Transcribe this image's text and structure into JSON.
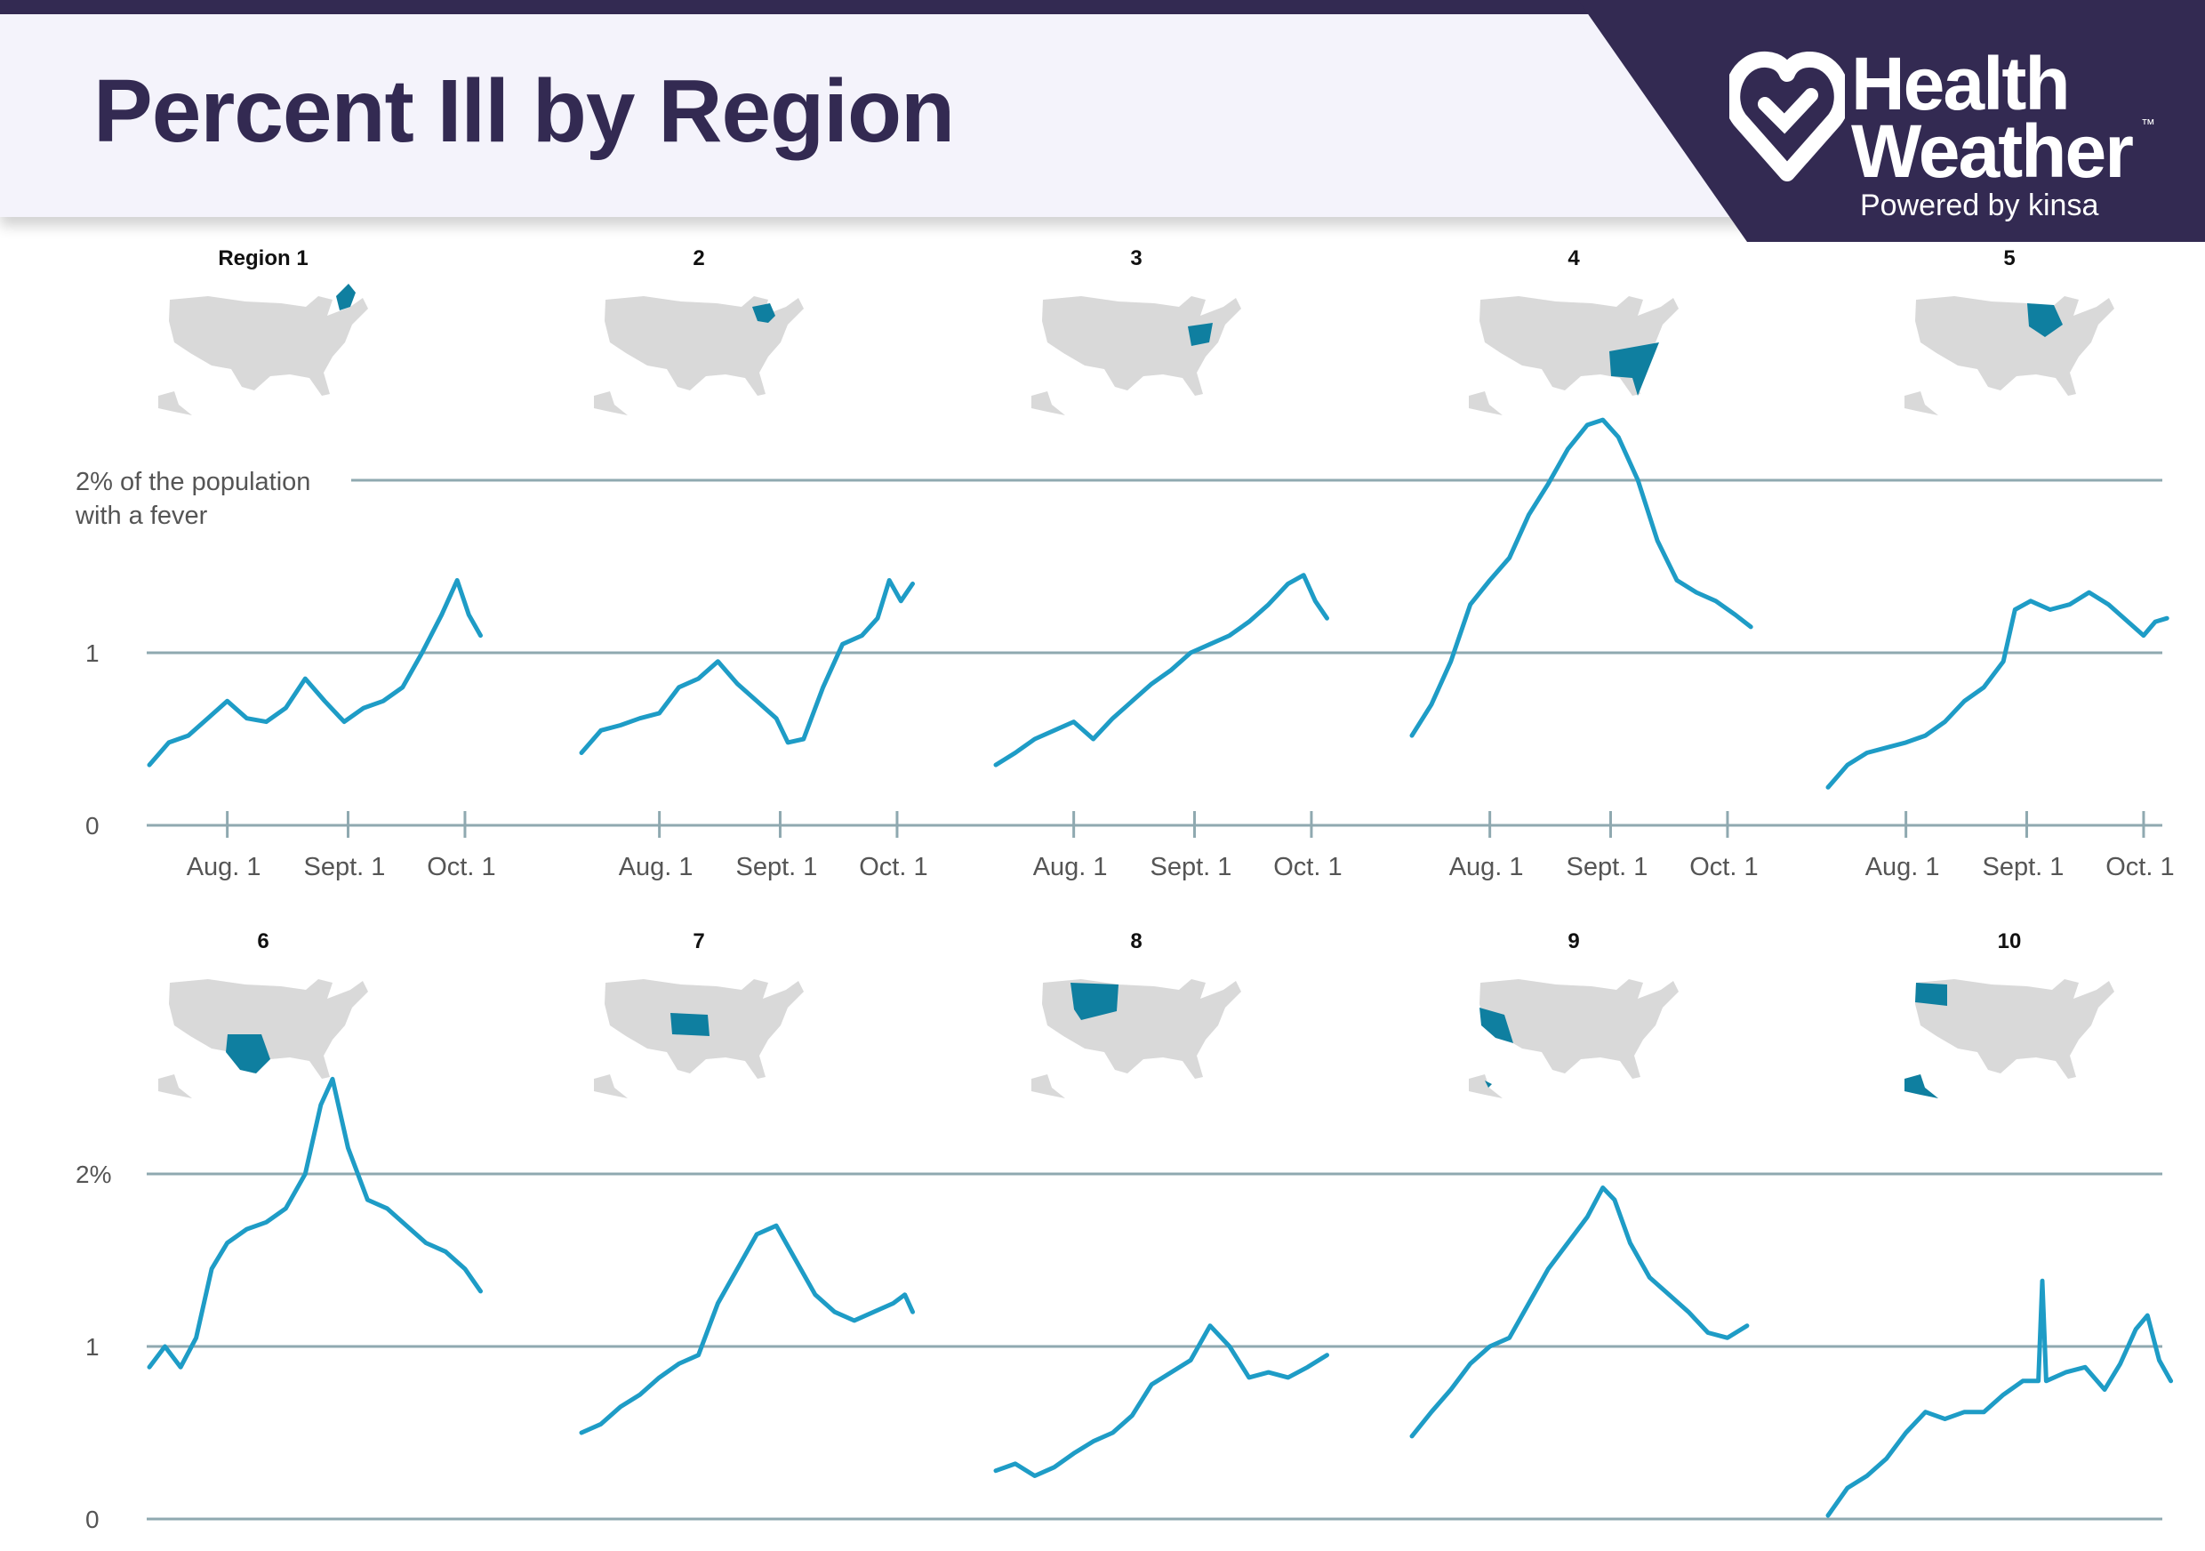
{
  "title": "Percent Ill by Region",
  "brand": {
    "line1": "Health",
    "line2": "Weather",
    "tm": "™",
    "powered": "Powered by kinsa",
    "bg": "#332a52"
  },
  "colors": {
    "line": "#1e9cc6",
    "highlight": "#0f7fa0",
    "map": "#d9d9d9",
    "grid": "#8fa9b0",
    "text": "#555555"
  },
  "chart_data": {
    "type": "line",
    "note_label": [
      "2% of the population",
      "with a fever"
    ],
    "ylim": [
      0,
      2.4
    ],
    "xlim": [
      "2019-07-12",
      "2019-10-09"
    ],
    "xticks": [
      {
        "date": "2019-08-01",
        "label": "Aug. 1"
      },
      {
        "date": "2019-09-01",
        "label": "Sept. 1"
      },
      {
        "date": "2019-10-01",
        "label": "Oct. 1"
      }
    ],
    "row_yticks": [
      {
        "value": 0,
        "label": "0"
      },
      {
        "value": 1,
        "label": "1"
      },
      {
        "value": 2,
        "label": "2%"
      }
    ],
    "regions": [
      {
        "label": "Region 1",
        "highlight": "New England",
        "points": [
          [
            "2019-07-12",
            0.35
          ],
          [
            "2019-07-17",
            0.48
          ],
          [
            "2019-07-22",
            0.52
          ],
          [
            "2019-07-27",
            0.62
          ],
          [
            "2019-08-01",
            0.72
          ],
          [
            "2019-08-06",
            0.62
          ],
          [
            "2019-08-11",
            0.6
          ],
          [
            "2019-08-16",
            0.68
          ],
          [
            "2019-08-21",
            0.85
          ],
          [
            "2019-08-26",
            0.72
          ],
          [
            "2019-08-31",
            0.6
          ],
          [
            "2019-09-05",
            0.68
          ],
          [
            "2019-09-10",
            0.72
          ],
          [
            "2019-09-15",
            0.8
          ],
          [
            "2019-09-20",
            1.0
          ],
          [
            "2019-09-25",
            1.22
          ],
          [
            "2019-09-29",
            1.42
          ],
          [
            "2019-10-02",
            1.22
          ],
          [
            "2019-10-05",
            1.1
          ]
        ]
      },
      {
        "label": "2",
        "highlight": "New York / New Jersey",
        "points": [
          [
            "2019-07-12",
            0.42
          ],
          [
            "2019-07-17",
            0.55
          ],
          [
            "2019-07-22",
            0.58
          ],
          [
            "2019-07-27",
            0.62
          ],
          [
            "2019-08-01",
            0.65
          ],
          [
            "2019-08-06",
            0.8
          ],
          [
            "2019-08-11",
            0.85
          ],
          [
            "2019-08-16",
            0.95
          ],
          [
            "2019-08-21",
            0.82
          ],
          [
            "2019-08-26",
            0.72
          ],
          [
            "2019-08-31",
            0.62
          ],
          [
            "2019-09-03",
            0.48
          ],
          [
            "2019-09-07",
            0.5
          ],
          [
            "2019-09-12",
            0.8
          ],
          [
            "2019-09-17",
            1.05
          ],
          [
            "2019-09-22",
            1.1
          ],
          [
            "2019-09-26",
            1.2
          ],
          [
            "2019-09-29",
            1.42
          ],
          [
            "2019-10-02",
            1.3
          ],
          [
            "2019-10-05",
            1.4
          ]
        ]
      },
      {
        "label": "3",
        "highlight": "Mid-Atlantic",
        "points": [
          [
            "2019-07-12",
            0.35
          ],
          [
            "2019-07-17",
            0.42
          ],
          [
            "2019-07-22",
            0.5
          ],
          [
            "2019-07-27",
            0.55
          ],
          [
            "2019-08-01",
            0.6
          ],
          [
            "2019-08-06",
            0.5
          ],
          [
            "2019-08-11",
            0.62
          ],
          [
            "2019-08-16",
            0.72
          ],
          [
            "2019-08-21",
            0.82
          ],
          [
            "2019-08-26",
            0.9
          ],
          [
            "2019-08-31",
            1.0
          ],
          [
            "2019-09-05",
            1.05
          ],
          [
            "2019-09-10",
            1.1
          ],
          [
            "2019-09-15",
            1.18
          ],
          [
            "2019-09-20",
            1.28
          ],
          [
            "2019-09-25",
            1.4
          ],
          [
            "2019-09-29",
            1.45
          ],
          [
            "2019-10-02",
            1.3
          ],
          [
            "2019-10-05",
            1.2
          ]
        ]
      },
      {
        "label": "4",
        "highlight": "Southeast",
        "points": [
          [
            "2019-07-12",
            0.52
          ],
          [
            "2019-07-17",
            0.7
          ],
          [
            "2019-07-22",
            0.95
          ],
          [
            "2019-07-27",
            1.28
          ],
          [
            "2019-08-01",
            1.42
          ],
          [
            "2019-08-06",
            1.55
          ],
          [
            "2019-08-11",
            1.8
          ],
          [
            "2019-08-16",
            1.98
          ],
          [
            "2019-08-21",
            2.18
          ],
          [
            "2019-08-26",
            2.32
          ],
          [
            "2019-08-30",
            2.35
          ],
          [
            "2019-09-03",
            2.25
          ],
          [
            "2019-09-08",
            2.0
          ],
          [
            "2019-09-13",
            1.65
          ],
          [
            "2019-09-18",
            1.42
          ],
          [
            "2019-09-23",
            1.35
          ],
          [
            "2019-09-28",
            1.3
          ],
          [
            "2019-10-03",
            1.22
          ],
          [
            "2019-10-07",
            1.15
          ]
        ]
      },
      {
        "label": "5",
        "highlight": "Great Lakes",
        "points": [
          [
            "2019-07-12",
            0.22
          ],
          [
            "2019-07-17",
            0.35
          ],
          [
            "2019-07-22",
            0.42
          ],
          [
            "2019-07-27",
            0.45
          ],
          [
            "2019-08-01",
            0.48
          ],
          [
            "2019-08-06",
            0.52
          ],
          [
            "2019-08-11",
            0.6
          ],
          [
            "2019-08-16",
            0.72
          ],
          [
            "2019-08-21",
            0.8
          ],
          [
            "2019-08-26",
            0.95
          ],
          [
            "2019-08-29",
            1.25
          ],
          [
            "2019-09-02",
            1.3
          ],
          [
            "2019-09-07",
            1.25
          ],
          [
            "2019-09-12",
            1.28
          ],
          [
            "2019-09-17",
            1.35
          ],
          [
            "2019-09-22",
            1.28
          ],
          [
            "2019-09-27",
            1.18
          ],
          [
            "2019-10-01",
            1.1
          ],
          [
            "2019-10-04",
            1.18
          ],
          [
            "2019-10-07",
            1.2
          ]
        ]
      },
      {
        "label": "6",
        "highlight": "South Central",
        "points": [
          [
            "2019-07-12",
            0.88
          ],
          [
            "2019-07-16",
            1.0
          ],
          [
            "2019-07-20",
            0.88
          ],
          [
            "2019-07-24",
            1.05
          ],
          [
            "2019-07-28",
            1.45
          ],
          [
            "2019-08-01",
            1.6
          ],
          [
            "2019-08-06",
            1.68
          ],
          [
            "2019-08-11",
            1.72
          ],
          [
            "2019-08-16",
            1.8
          ],
          [
            "2019-08-21",
            2.0
          ],
          [
            "2019-08-25",
            2.4
          ],
          [
            "2019-08-28",
            2.55
          ],
          [
            "2019-09-01",
            2.15
          ],
          [
            "2019-09-06",
            1.85
          ],
          [
            "2019-09-11",
            1.8
          ],
          [
            "2019-09-16",
            1.7
          ],
          [
            "2019-09-21",
            1.6
          ],
          [
            "2019-09-26",
            1.55
          ],
          [
            "2019-10-01",
            1.45
          ],
          [
            "2019-10-05",
            1.32
          ]
        ]
      },
      {
        "label": "7",
        "highlight": "Midwest",
        "points": [
          [
            "2019-07-12",
            0.5
          ],
          [
            "2019-07-17",
            0.55
          ],
          [
            "2019-07-22",
            0.65
          ],
          [
            "2019-07-27",
            0.72
          ],
          [
            "2019-08-01",
            0.82
          ],
          [
            "2019-08-06",
            0.9
          ],
          [
            "2019-08-11",
            0.95
          ],
          [
            "2019-08-16",
            1.25
          ],
          [
            "2019-08-21",
            1.45
          ],
          [
            "2019-08-26",
            1.65
          ],
          [
            "2019-08-31",
            1.7
          ],
          [
            "2019-09-05",
            1.5
          ],
          [
            "2019-09-10",
            1.3
          ],
          [
            "2019-09-15",
            1.2
          ],
          [
            "2019-09-20",
            1.15
          ],
          [
            "2019-09-25",
            1.2
          ],
          [
            "2019-09-30",
            1.25
          ],
          [
            "2019-10-03",
            1.3
          ],
          [
            "2019-10-05",
            1.2
          ]
        ]
      },
      {
        "label": "8",
        "highlight": "Mountain",
        "points": [
          [
            "2019-07-12",
            0.28
          ],
          [
            "2019-07-17",
            0.32
          ],
          [
            "2019-07-22",
            0.25
          ],
          [
            "2019-07-27",
            0.3
          ],
          [
            "2019-08-01",
            0.38
          ],
          [
            "2019-08-06",
            0.45
          ],
          [
            "2019-08-11",
            0.5
          ],
          [
            "2019-08-16",
            0.6
          ],
          [
            "2019-08-21",
            0.78
          ],
          [
            "2019-08-26",
            0.85
          ],
          [
            "2019-08-31",
            0.92
          ],
          [
            "2019-09-05",
            1.12
          ],
          [
            "2019-09-10",
            1.0
          ],
          [
            "2019-09-15",
            0.82
          ],
          [
            "2019-09-20",
            0.85
          ],
          [
            "2019-09-25",
            0.82
          ],
          [
            "2019-09-30",
            0.88
          ],
          [
            "2019-10-05",
            0.95
          ]
        ]
      },
      {
        "label": "9",
        "highlight": "Pacific Southwest",
        "points": [
          [
            "2019-07-12",
            0.48
          ],
          [
            "2019-07-17",
            0.62
          ],
          [
            "2019-07-22",
            0.75
          ],
          [
            "2019-07-27",
            0.9
          ],
          [
            "2019-08-01",
            1.0
          ],
          [
            "2019-08-06",
            1.05
          ],
          [
            "2019-08-11",
            1.25
          ],
          [
            "2019-08-16",
            1.45
          ],
          [
            "2019-08-21",
            1.6
          ],
          [
            "2019-08-26",
            1.75
          ],
          [
            "2019-08-30",
            1.92
          ],
          [
            "2019-09-02",
            1.85
          ],
          [
            "2019-09-06",
            1.6
          ],
          [
            "2019-09-11",
            1.4
          ],
          [
            "2019-09-16",
            1.3
          ],
          [
            "2019-09-21",
            1.2
          ],
          [
            "2019-09-26",
            1.08
          ],
          [
            "2019-10-01",
            1.05
          ],
          [
            "2019-10-06",
            1.12
          ]
        ]
      },
      {
        "label": "10",
        "highlight": "Pacific Northwest / Alaska",
        "points": [
          [
            "2019-07-12",
            0.02
          ],
          [
            "2019-07-17",
            0.18
          ],
          [
            "2019-07-22",
            0.25
          ],
          [
            "2019-07-27",
            0.35
          ],
          [
            "2019-08-01",
            0.5
          ],
          [
            "2019-08-06",
            0.62
          ],
          [
            "2019-08-11",
            0.58
          ],
          [
            "2019-08-16",
            0.62
          ],
          [
            "2019-08-21",
            0.62
          ],
          [
            "2019-08-26",
            0.72
          ],
          [
            "2019-08-31",
            0.8
          ],
          [
            "2019-09-04",
            0.8
          ],
          [
            "2019-09-05",
            1.38
          ],
          [
            "2019-09-06",
            0.8
          ],
          [
            "2019-09-11",
            0.85
          ],
          [
            "2019-09-16",
            0.88
          ],
          [
            "2019-09-21",
            0.75
          ],
          [
            "2019-09-25",
            0.9
          ],
          [
            "2019-09-29",
            1.1
          ],
          [
            "2019-10-02",
            1.18
          ],
          [
            "2019-10-05",
            0.92
          ],
          [
            "2019-10-08",
            0.8
          ]
        ]
      }
    ]
  }
}
